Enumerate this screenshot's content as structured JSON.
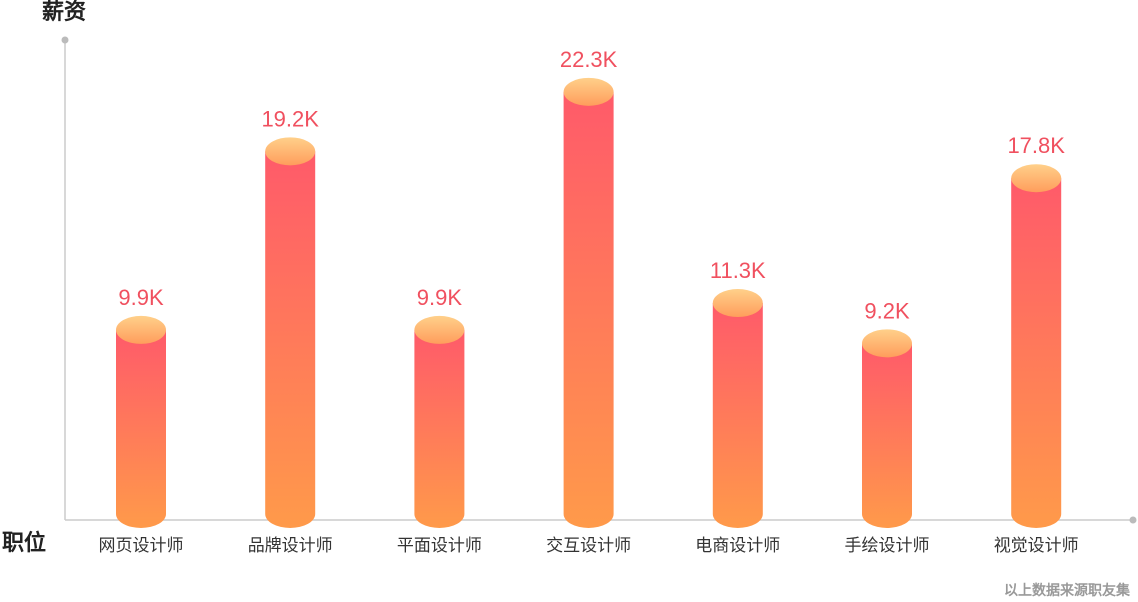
{
  "chart_data": {
    "type": "bar",
    "bar_style": "cylinder",
    "ylabel": "薪资",
    "xlabel": "职位",
    "categories": [
      "网页设计师",
      "品牌设计师",
      "平面设计师",
      "交互设计师",
      "电商设计师",
      "手绘设计师",
      "视觉设计师"
    ],
    "values": [
      9.9,
      19.2,
      9.9,
      22.3,
      11.3,
      9.2,
      17.8
    ],
    "value_labels": [
      "9.9K",
      "19.2K",
      "9.9K",
      "22.3K",
      "11.3K",
      "9.2K",
      "17.8K"
    ],
    "unit": "K",
    "ylim": [
      0,
      24
    ],
    "grid": false,
    "legend": "none",
    "colors": {
      "bar_top": "#ff5a6a",
      "bar_bottom": "#ff9a4a",
      "cap_light": "#ffd08a",
      "cap_dark": "#ff9d5c",
      "label": "#f0505f",
      "axis": "#cccccc",
      "axis_dot": "#bbbbbb",
      "tick_label": "#333333"
    }
  },
  "footer": {
    "source_note": "以上数据来源职友集"
  }
}
